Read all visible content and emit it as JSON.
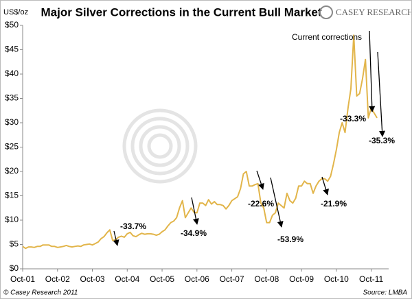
{
  "chart_data": {
    "type": "line",
    "title": "Major Silver Corrections in the Current Bull Market",
    "y_label": "US$/oz",
    "brand": "CASEY RESEARCH",
    "footer_left": "© Casey Research 2011",
    "footer_right": "Source: LMBA",
    "color": "#e2b54a",
    "x": [
      "2001-10",
      "2001-11",
      "2001-12",
      "2002-01",
      "2002-02",
      "2002-03",
      "2002-04",
      "2002-05",
      "2002-06",
      "2002-07",
      "2002-08",
      "2002-09",
      "2002-10",
      "2002-11",
      "2002-12",
      "2003-01",
      "2003-02",
      "2003-03",
      "2003-04",
      "2003-05",
      "2003-06",
      "2003-07",
      "2003-08",
      "2003-09",
      "2003-10",
      "2003-11",
      "2003-12",
      "2004-01",
      "2004-02",
      "2004-03",
      "2004-04",
      "2004-05",
      "2004-06",
      "2004-07",
      "2004-08",
      "2004-09",
      "2004-10",
      "2004-11",
      "2004-12",
      "2005-01",
      "2005-02",
      "2005-03",
      "2005-04",
      "2005-05",
      "2005-06",
      "2005-07",
      "2005-08",
      "2005-09",
      "2005-10",
      "2005-11",
      "2005-12",
      "2006-01",
      "2006-02",
      "2006-03",
      "2006-04",
      "2006-05",
      "2006-06",
      "2006-07",
      "2006-08",
      "2006-09",
      "2006-10",
      "2006-11",
      "2006-12",
      "2007-01",
      "2007-02",
      "2007-03",
      "2007-04",
      "2007-05",
      "2007-06",
      "2007-07",
      "2007-08",
      "2007-09",
      "2007-10",
      "2007-11",
      "2007-12",
      "2008-01",
      "2008-02",
      "2008-03",
      "2008-04",
      "2008-05",
      "2008-06",
      "2008-07",
      "2008-08",
      "2008-09",
      "2008-10",
      "2008-11",
      "2008-12",
      "2009-01",
      "2009-02",
      "2009-03",
      "2009-04",
      "2009-05",
      "2009-06",
      "2009-07",
      "2009-08",
      "2009-09",
      "2009-10",
      "2009-11",
      "2009-12",
      "2010-01",
      "2010-02",
      "2010-03",
      "2010-04",
      "2010-05",
      "2010-06",
      "2010-07",
      "2010-08",
      "2010-09",
      "2010-10",
      "2010-11",
      "2010-12",
      "2011-01",
      "2011-02",
      "2011-03",
      "2011-04",
      "2011-05",
      "2011-06",
      "2011-07",
      "2011-08",
      "2011-09",
      "2011-10",
      "2011-11",
      "2011-12"
    ],
    "values": [
      4.6,
      4.2,
      4.5,
      4.5,
      4.4,
      4.6,
      4.6,
      4.9,
      4.9,
      4.9,
      4.6,
      4.6,
      4.4,
      4.5,
      4.6,
      4.8,
      4.6,
      4.5,
      4.6,
      4.7,
      4.6,
      4.9,
      5.0,
      5.1,
      4.9,
      5.2,
      5.5,
      6.2,
      6.6,
      7.4,
      8.0,
      5.8,
      6.0,
      6.5,
      6.7,
      6.5,
      7.2,
      7.5,
      6.8,
      6.6,
      7.0,
      7.3,
      7.1,
      7.2,
      7.2,
      7.1,
      6.9,
      7.1,
      7.6,
      8.0,
      8.8,
      9.5,
      9.8,
      10.5,
      12.5,
      14.0,
      10.5,
      11.5,
      12.5,
      11.6,
      11.5,
      13.5,
      13.5,
      13.0,
      14.2,
      13.3,
      13.8,
      13.2,
      13.2,
      13.0,
      12.3,
      13.0,
      14.0,
      14.4,
      14.8,
      16.5,
      19.5,
      20.0,
      17.0,
      17.0,
      17.3,
      17.5,
      13.5,
      12.5,
      9.5,
      9.5,
      11.0,
      11.5,
      13.5,
      13.0,
      12.5,
      15.5,
      14.0,
      13.5,
      14.5,
      17.0,
      17.0,
      18.0,
      17.5,
      17.5,
      15.5,
      17.0,
      18.0,
      18.5,
      18.5,
      18.0,
      19.0,
      21.5,
      24.5,
      28.0,
      30.0,
      28.0,
      33.0,
      37.0,
      48.0,
      35.5,
      36.0,
      39.0,
      43.0,
      31.0,
      33.0,
      32.0,
      31.0
    ],
    "xlim": [
      "2001-10",
      "2012-04"
    ],
    "xticks": [
      {
        "value": "2001-10",
        "label": "Oct-01"
      },
      {
        "value": "2002-10",
        "label": "Oct-02"
      },
      {
        "value": "2003-10",
        "label": "Oct-03"
      },
      {
        "value": "2004-10",
        "label": "Oct-04"
      },
      {
        "value": "2005-10",
        "label": "Oct-05"
      },
      {
        "value": "2006-10",
        "label": "Oct-06"
      },
      {
        "value": "2007-10",
        "label": "Oct-07"
      },
      {
        "value": "2008-10",
        "label": "Oct-08"
      },
      {
        "value": "2009-10",
        "label": "Oct-09"
      },
      {
        "value": "2010-10",
        "label": "Oct-10"
      },
      {
        "value": "2011-10",
        "label": "Oct-11"
      }
    ],
    "ylim": [
      0,
      50
    ],
    "yticks": [
      {
        "value": 0,
        "label": "$0"
      },
      {
        "value": 5,
        "label": "$5"
      },
      {
        "value": 10,
        "label": "$10"
      },
      {
        "value": 15,
        "label": "$15"
      },
      {
        "value": 20,
        "label": "$20"
      },
      {
        "value": 25,
        "label": "$25"
      },
      {
        "value": 30,
        "label": "$30"
      },
      {
        "value": 35,
        "label": "$35"
      },
      {
        "value": 40,
        "label": "$40"
      },
      {
        "value": 45,
        "label": "$45"
      },
      {
        "value": 50,
        "label": "$50"
      }
    ],
    "annotations": [
      "-33.7%",
      "-34.9%",
      "-22.6%",
      "-53.9%",
      "-21.9%",
      "-33.3%",
      "-35.3%",
      "Current corrections"
    ]
  }
}
